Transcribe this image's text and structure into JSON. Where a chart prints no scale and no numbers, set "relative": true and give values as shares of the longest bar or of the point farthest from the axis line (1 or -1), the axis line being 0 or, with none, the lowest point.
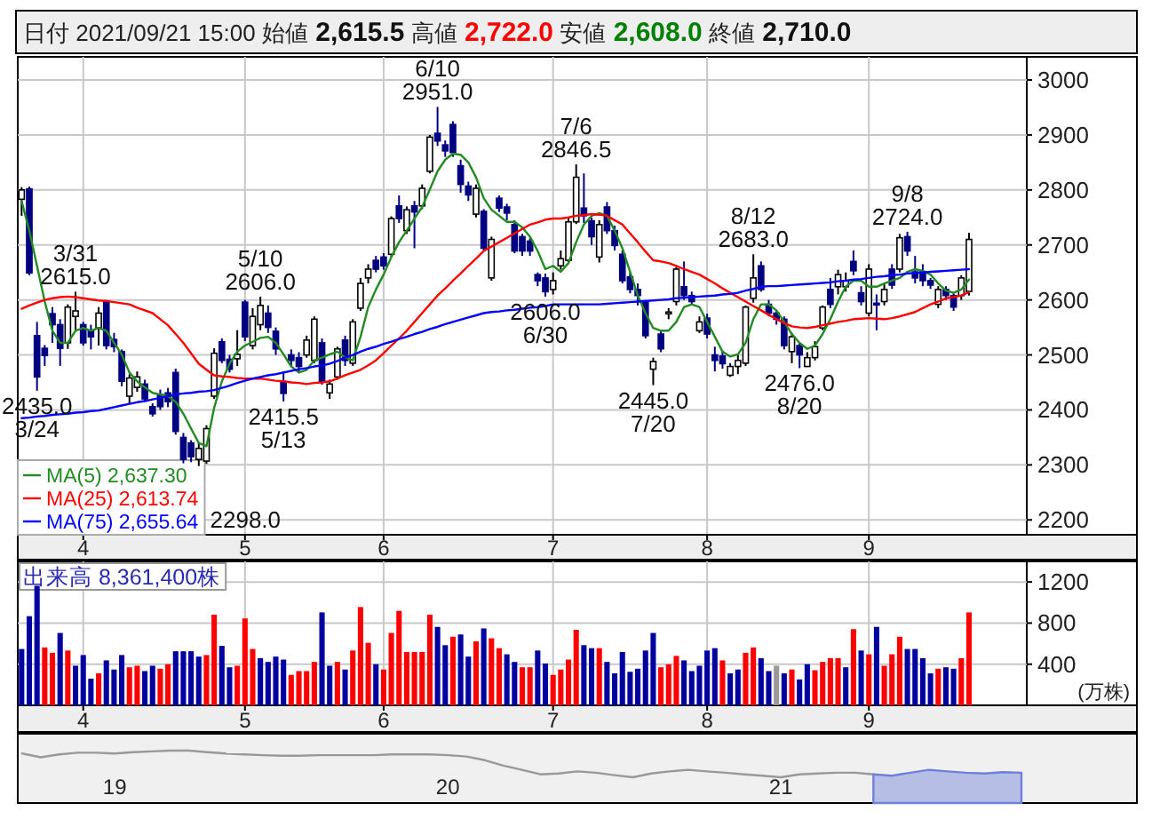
{
  "chart_data": [
    {
      "type": "candlestick",
      "categories": [
        null,
        null,
        null,
        null,
        null,
        null,
        null,
        null,
        "4",
        null,
        null,
        null,
        null,
        null,
        null,
        null,
        null,
        null,
        null,
        null,
        null,
        null,
        null,
        null,
        null,
        null,
        null,
        null,
        null,
        "5",
        null,
        null,
        null,
        null,
        null,
        null,
        null,
        null,
        null,
        null,
        null,
        null,
        null,
        null,
        null,
        null,
        null,
        "6",
        null,
        null,
        null,
        null,
        null,
        null,
        null,
        null,
        null,
        null,
        null,
        null,
        null,
        null,
        null,
        null,
        null,
        null,
        null,
        null,
        null,
        "7",
        null,
        null,
        null,
        null,
        null,
        null,
        null,
        null,
        null,
        null,
        null,
        null,
        null,
        null,
        null,
        null,
        null,
        null,
        null,
        "8",
        null,
        null,
        null,
        null,
        null,
        null,
        null,
        null,
        null,
        null,
        null,
        null,
        null,
        null,
        null,
        null,
        null,
        null,
        null,
        null,
        "9",
        null,
        null,
        null,
        null,
        null,
        null,
        null,
        null,
        null,
        null,
        null,
        null,
        null
      ],
      "ohlc": [
        [
          2783,
          2805,
          2753,
          2800
        ],
        [
          2802,
          2806,
          2645,
          2649
        ],
        [
          2535,
          2560,
          2435,
          2460
        ],
        [
          2512,
          2518,
          2480,
          2499
        ],
        [
          2575,
          2587,
          2522,
          2555
        ],
        [
          2555,
          2565,
          2480,
          2512
        ],
        [
          2522,
          2592,
          2511,
          2587
        ],
        [
          2570,
          2615,
          2545,
          2580
        ],
        [
          2555,
          2560,
          2517,
          2522
        ],
        [
          2545,
          2555,
          2510,
          2533
        ],
        [
          2549,
          2587,
          2517,
          2576
        ],
        [
          2597,
          2600,
          2510,
          2517
        ],
        [
          2528,
          2540,
          2505,
          2515
        ],
        [
          2506,
          2510,
          2443,
          2452
        ],
        [
          2425,
          2465,
          2410,
          2458
        ],
        [
          2441,
          2470,
          2433,
          2460
        ],
        [
          2447,
          2455,
          2415,
          2420
        ],
        [
          2406,
          2412,
          2388,
          2393
        ],
        [
          2428,
          2437,
          2400,
          2406
        ],
        [
          2431,
          2440,
          2405,
          2415
        ],
        [
          2468,
          2475,
          2355,
          2361
        ],
        [
          2350,
          2358,
          2303,
          2310
        ],
        [
          2340,
          2345,
          2305,
          2315
        ],
        [
          2310,
          2340,
          2298,
          2330
        ],
        [
          2307,
          2372,
          2302,
          2366
        ],
        [
          2425,
          2512,
          2420,
          2503
        ],
        [
          2524,
          2530,
          2485,
          2490
        ],
        [
          2492,
          2500,
          2468,
          2474
        ],
        [
          2493,
          2545,
          2480,
          2501
        ],
        [
          2596,
          2600,
          2525,
          2533
        ],
        [
          2517,
          2585,
          2510,
          2570
        ],
        [
          2555,
          2606,
          2545,
          2590
        ],
        [
          2576,
          2590,
          2540,
          2550
        ],
        [
          2543,
          2550,
          2500,
          2511
        ],
        [
          2450,
          2470,
          2415.5,
          2430
        ],
        [
          2500,
          2510,
          2480,
          2490
        ],
        [
          2495,
          2505,
          2470,
          2479
        ],
        [
          2500,
          2535,
          2495,
          2527
        ],
        [
          2490,
          2570,
          2485,
          2565
        ],
        [
          2522,
          2530,
          2446,
          2452
        ],
        [
          2431,
          2455,
          2420,
          2447
        ],
        [
          2460,
          2515,
          2455,
          2511
        ],
        [
          2527,
          2535,
          2480,
          2490
        ],
        [
          2485,
          2565,
          2480,
          2560
        ],
        [
          2585,
          2640,
          2580,
          2630
        ],
        [
          2640,
          2665,
          2630,
          2656
        ],
        [
          2672,
          2680,
          2650,
          2656
        ],
        [
          2678,
          2685,
          2655,
          2662
        ],
        [
          2683,
          2752,
          2678,
          2748
        ],
        [
          2771,
          2790,
          2740,
          2748
        ],
        [
          2726,
          2770,
          2720,
          2764
        ],
        [
          2771,
          2780,
          2694,
          2760
        ],
        [
          2771,
          2810,
          2765,
          2803
        ],
        [
          2834,
          2900,
          2830,
          2896
        ],
        [
          2903,
          2951,
          2880,
          2889
        ],
        [
          2882,
          2890,
          2860,
          2871
        ],
        [
          2919,
          2925,
          2860,
          2868
        ],
        [
          2844,
          2855,
          2795,
          2810
        ],
        [
          2807,
          2815,
          2780,
          2791
        ],
        [
          2756,
          2810,
          2750,
          2803
        ],
        [
          2761,
          2765,
          2690,
          2694
        ],
        [
          2640,
          2715,
          2635,
          2710
        ],
        [
          2785,
          2790,
          2760,
          2767
        ],
        [
          2769,
          2775,
          2745,
          2758
        ],
        [
          2737,
          2745,
          2685,
          2689
        ],
        [
          2715,
          2720,
          2680,
          2689
        ],
        [
          2707,
          2712,
          2680,
          2689
        ],
        [
          2646,
          2650,
          2625,
          2635
        ],
        [
          2640,
          2648,
          2606,
          2615
        ],
        [
          2619,
          2650,
          2610,
          2635
        ],
        [
          2662,
          2690,
          2655,
          2675
        ],
        [
          2672,
          2750,
          2668,
          2742
        ],
        [
          2742,
          2846.5,
          2738,
          2823
        ],
        [
          2767,
          2830,
          2740,
          2753
        ],
        [
          2744,
          2750,
          2700,
          2715
        ],
        [
          2678,
          2745,
          2668,
          2737
        ],
        [
          2769,
          2778,
          2720,
          2726
        ],
        [
          2726,
          2735,
          2690,
          2699
        ],
        [
          2683,
          2690,
          2630,
          2635
        ],
        [
          2642,
          2650,
          2612,
          2619
        ],
        [
          2619,
          2630,
          2590,
          2608
        ],
        [
          2597,
          2600,
          2530,
          2535
        ],
        [
          2474,
          2495,
          2445,
          2488
        ],
        [
          2538,
          2545,
          2505,
          2511
        ],
        [
          2576,
          2585,
          2565,
          2578
        ],
        [
          2597,
          2660,
          2590,
          2656
        ],
        [
          2624,
          2670,
          2600,
          2608
        ],
        [
          2608,
          2615,
          2590,
          2597
        ],
        [
          2544,
          2570,
          2540,
          2560
        ],
        [
          2567,
          2575,
          2530,
          2538
        ],
        [
          2500,
          2515,
          2470,
          2490
        ],
        [
          2498,
          2508,
          2475,
          2484
        ],
        [
          2463,
          2485,
          2460,
          2479
        ],
        [
          2479,
          2500,
          2465,
          2490
        ],
        [
          2485,
          2590,
          2480,
          2587
        ],
        [
          2603,
          2683,
          2595,
          2640
        ],
        [
          2662,
          2670,
          2615,
          2619
        ],
        [
          2592,
          2600,
          2570,
          2576
        ],
        [
          2576,
          2580,
          2555,
          2565
        ],
        [
          2565,
          2570,
          2510,
          2517
        ],
        [
          2506,
          2540,
          2485,
          2533
        ],
        [
          2517,
          2522,
          2476,
          2500
        ],
        [
          2479,
          2505,
          2478,
          2495
        ],
        [
          2495,
          2525,
          2490,
          2515
        ],
        [
          2549,
          2590,
          2545,
          2587
        ],
        [
          2619,
          2640,
          2585,
          2592
        ],
        [
          2624,
          2655,
          2610,
          2646
        ],
        [
          2624,
          2650,
          2615,
          2635
        ],
        [
          2670,
          2690,
          2645,
          2653
        ],
        [
          2613,
          2625,
          2590,
          2597
        ],
        [
          2576,
          2665,
          2570,
          2656
        ],
        [
          2594,
          2610,
          2545,
          2592
        ],
        [
          2597,
          2630,
          2590,
          2619
        ],
        [
          2656,
          2665,
          2620,
          2627
        ],
        [
          2656,
          2720,
          2650,
          2713
        ],
        [
          2715,
          2724,
          2680,
          2689
        ],
        [
          2651,
          2680,
          2630,
          2640
        ],
        [
          2651,
          2665,
          2625,
          2635
        ],
        [
          2635,
          2640,
          2620,
          2627
        ],
        [
          2592,
          2625,
          2585,
          2619
        ],
        [
          2619,
          2625,
          2600,
          2608
        ],
        [
          2608,
          2612,
          2580,
          2587
        ],
        [
          2608,
          2645,
          2600,
          2640
        ],
        [
          2615.5,
          2722,
          2608,
          2710
        ]
      ],
      "series": [
        {
          "name": "MA(5)  2,637.30",
          "type": "line",
          "color": "#228b22",
          "values": [
            2780,
            2726,
            2662,
            2597,
            2544,
            2522,
            2522,
            2544,
            2549,
            2544,
            2549,
            2544,
            2522,
            2501,
            2468,
            2452,
            2441,
            2431,
            2428,
            2425,
            2415,
            2393,
            2366,
            2340,
            2334,
            2404,
            2452,
            2484,
            2506,
            2517,
            2524,
            2531,
            2533,
            2522,
            2501,
            2479,
            2468,
            2473,
            2490,
            2495,
            2501,
            2506,
            2495,
            2490,
            2533,
            2587,
            2619,
            2646,
            2678,
            2705,
            2726,
            2748,
            2769,
            2801,
            2834,
            2855,
            2866,
            2864,
            2850,
            2823,
            2785,
            2764,
            2753,
            2742,
            2742,
            2732,
            2715,
            2689,
            2656,
            2662,
            2651,
            2667,
            2705,
            2737,
            2753,
            2758,
            2753,
            2726,
            2694,
            2651,
            2608,
            2576,
            2549,
            2544,
            2544,
            2560,
            2587,
            2592,
            2587,
            2560,
            2533,
            2506,
            2497,
            2501,
            2522,
            2565,
            2592,
            2592,
            2581,
            2560,
            2538,
            2522,
            2511,
            2517,
            2538,
            2565,
            2597,
            2624,
            2635,
            2635,
            2624,
            2624,
            2630,
            2635,
            2640,
            2651,
            2656,
            2653,
            2646,
            2630,
            2617,
            2613,
            2619,
            2637
          ]
        },
        {
          "name": "MA(25)  2,613.74",
          "type": "line",
          "color": "#ff0000",
          "values": [
            2584,
            2590,
            2595,
            2600,
            2603,
            2605,
            2606,
            2605,
            2603,
            2601,
            2599,
            2598,
            2596,
            2594,
            2592,
            2586,
            2581,
            2576,
            2565,
            2554,
            2538,
            2522,
            2503,
            2484,
            2473,
            2463,
            2461,
            2460,
            2458,
            2457,
            2457,
            2457,
            2455,
            2453,
            2452,
            2450,
            2449,
            2447,
            2449,
            2450,
            2452,
            2457,
            2463,
            2468,
            2473,
            2481,
            2490,
            2503,
            2517,
            2530,
            2544,
            2560,
            2576,
            2592,
            2608,
            2621,
            2635,
            2648,
            2662,
            2675,
            2689,
            2697,
            2705,
            2713,
            2721,
            2729,
            2737,
            2741,
            2746,
            2748,
            2748,
            2750,
            2753,
            2754,
            2756,
            2755,
            2753,
            2745,
            2737,
            2721,
            2705,
            2688,
            2672,
            2670,
            2667,
            2662,
            2656,
            2651,
            2646,
            2638,
            2630,
            2621,
            2613,
            2605,
            2597,
            2589,
            2581,
            2573,
            2565,
            2558,
            2552,
            2550,
            2549,
            2551,
            2554,
            2557,
            2560,
            2562,
            2565,
            2566,
            2567,
            2566,
            2565,
            2567,
            2570,
            2574,
            2578,
            2585,
            2592,
            2597,
            2603,
            2605,
            2608,
            2614
          ]
        },
        {
          "name": "MA(75)  2,655.64",
          "type": "line",
          "color": "#0000ff",
          "values": [
            2385,
            2386,
            2388,
            2389,
            2391,
            2392,
            2393,
            2395,
            2396,
            2398,
            2399,
            2402,
            2405,
            2408,
            2411,
            2414,
            2416,
            2419,
            2422,
            2425,
            2428,
            2430,
            2431,
            2433,
            2434,
            2436,
            2440,
            2444,
            2449,
            2453,
            2457,
            2460,
            2463,
            2465,
            2468,
            2471,
            2474,
            2476,
            2479,
            2481,
            2484,
            2489,
            2495,
            2500,
            2506,
            2511,
            2515,
            2520,
            2524,
            2529,
            2533,
            2538,
            2542,
            2547,
            2551,
            2556,
            2560,
            2564,
            2568,
            2572,
            2576,
            2578,
            2579,
            2581,
            2582,
            2584,
            2586,
            2587,
            2589,
            2592,
            2592,
            2592,
            2592,
            2592,
            2592,
            2592,
            2593,
            2594,
            2595,
            2596,
            2597,
            2598,
            2599,
            2600,
            2601,
            2603,
            2604,
            2605,
            2606,
            2607,
            2608,
            2610,
            2611,
            2613,
            2617,
            2620,
            2624,
            2625,
            2625,
            2626,
            2627,
            2628,
            2629,
            2630,
            2631,
            2632,
            2634,
            2635,
            2637,
            2638,
            2640,
            2642,
            2643,
            2645,
            2646,
            2648,
            2649,
            2650,
            2651,
            2652,
            2653,
            2654,
            2655,
            2656
          ]
        }
      ],
      "ylim": [
        2173,
        3042
      ],
      "yticks": [
        2200,
        2300,
        2400,
        2500,
        2600,
        2700,
        2800,
        2900,
        3000
      ],
      "grid": true,
      "legend": "bottom left",
      "title": "日付 2021/09/21 15:00 始値 2,615.5 高値 2,722.0 安値 2,608.0 終値 2,710.0",
      "annotations": [
        "2298.0",
        {
          "text": "3/31\n2615.0",
          "y": 2615
        },
        {
          "text": "2435.0\n3/24",
          "y": 2435
        },
        {
          "text": "5/10\n2606.0",
          "y": 2606
        },
        {
          "text": "2415.5\n5/13",
          "y": 2415.5
        },
        {
          "text": "6/10\n2951.0",
          "y": 2951
        },
        {
          "text": "2606.0\n6/30",
          "y": 2606
        },
        {
          "text": "7/6\n2846.5",
          "y": 2846.5
        },
        {
          "text": "2445.0\n7/20",
          "y": 2445
        },
        {
          "text": "8/12\n2683.0",
          "y": 2683
        },
        {
          "text": "2476.0\n8/20",
          "y": 2476
        },
        {
          "text": "9/8\n2724.0",
          "y": 2724
        }
      ]
    },
    {
      "type": "bar",
      "title": "出来高  8,361,400株",
      "ylabel": "(万株)",
      "categories": [
        null,
        null,
        null,
        null,
        null,
        null,
        null,
        null,
        "4",
        null,
        null,
        null,
        null,
        null,
        null,
        null,
        null,
        null,
        null,
        null,
        null,
        null,
        null,
        null,
        null,
        null,
        null,
        null,
        null,
        "5",
        null,
        null,
        null,
        null,
        null,
        null,
        null,
        null,
        null,
        null,
        null,
        null,
        null,
        null,
        null,
        null,
        null,
        "6",
        null,
        null,
        null,
        null,
        null,
        null,
        null,
        null,
        null,
        null,
        null,
        null,
        null,
        null,
        null,
        null,
        null,
        null,
        null,
        null,
        null,
        "7",
        null,
        null,
        null,
        null,
        null,
        null,
        null,
        null,
        null,
        null,
        null,
        null,
        null,
        null,
        null,
        null,
        null,
        null,
        null,
        "8",
        null,
        null,
        null,
        null,
        null,
        null,
        null,
        null,
        null,
        null,
        null,
        null,
        null,
        null,
        null,
        null,
        null,
        null,
        null,
        null,
        "9",
        null,
        null,
        null,
        null,
        null,
        null,
        null,
        null,
        null,
        null,
        null,
        null,
        null
      ],
      "values": [
        548,
        867,
        1163,
        563,
        511,
        704,
        533,
        385,
        489,
        259,
        311,
        437,
        348,
        489,
        370,
        385,
        333,
        385,
        356,
        400,
        526,
        526,
        526,
        474,
        489,
        882,
        578,
        370,
        385,
        845,
        548,
        459,
        422,
        474,
        445,
        296,
        333,
        333,
        422,
        904,
        385,
        422,
        348,
        533,
        956,
        608,
        400,
        348,
        704,
        919,
        519,
        519,
        519,
        882,
        763,
        585,
        667,
        689,
        474,
        622,
        748,
        652,
        556,
        496,
        422,
        370,
        370,
        533,
        407,
        296,
        348,
        445,
        734,
        585,
        556,
        556,
        422,
        311,
        519,
        326,
        356,
        533,
        704,
        370,
        400,
        481,
        437,
        333,
        385,
        533,
        556,
        437,
        311,
        348,
        511,
        563,
        459,
        333,
        385,
        311,
        348,
        252,
        400,
        341,
        422,
        459,
        459,
        370,
        741,
        533,
        496,
        763,
        385,
        496,
        667,
        548,
        548,
        459,
        311,
        356,
        370,
        356,
        459,
        904
      ],
      "colors": [
        "#0000a0",
        "#0000a0",
        "#0000a0",
        "#ff0000",
        "#ff0000",
        "#0000a0",
        "#ff0000",
        "#0000a0",
        "#0000a0",
        "#0000a0",
        "#ff0000",
        "#0000a0",
        "#0000a0",
        "#0000a0",
        "#ff0000",
        "#ff0000",
        "#0000a0",
        "#0000a0",
        "#ff0000",
        "#ff0000",
        "#0000a0",
        "#0000a0",
        "#0000a0",
        "#0000a0",
        "#ff0000",
        "#ff0000",
        "#0000a0",
        "#0000a0",
        "#ff0000",
        "#ff0000",
        "#ff0000",
        "#0000a0",
        "#0000a0",
        "#0000a0",
        "#0000a0",
        "#ff0000",
        "#ff0000",
        "#ff0000",
        "#ff0000",
        "#0000a0",
        "#0000a0",
        "#ff0000",
        "#0000a0",
        "#ff0000",
        "#ff0000",
        "#ff0000",
        "#0000a0",
        "#ff0000",
        "#ff0000",
        "#ff0000",
        "#ff0000",
        "#ff0000",
        "#ff0000",
        "#ff0000",
        "#0000a0",
        "#0000a0",
        "#ff0000",
        "#0000a0",
        "#0000a0",
        "#ff0000",
        "#0000a0",
        "#ff0000",
        "#ff0000",
        "#0000a0",
        "#0000a0",
        "#ff0000",
        "#ff0000",
        "#0000a0",
        "#0000a0",
        "#ff0000",
        "#ff0000",
        "#ff0000",
        "#ff0000",
        "#0000a0",
        "#0000a0",
        "#ff0000",
        "#0000a0",
        "#0000a0",
        "#0000a0",
        "#0000a0",
        "#0000a0",
        "#0000a0",
        "#0000a0",
        "#ff0000",
        "#ff0000",
        "#ff0000",
        "#0000a0",
        "#0000a0",
        "#0000a0",
        "#0000a0",
        "#0000a0",
        "#ff0000",
        "#0000a0",
        "#0000a0",
        "#ff0000",
        "#ff0000",
        "#0000a0",
        "#0000a0",
        "#999999",
        "#0000a0",
        "#ff0000",
        "#0000a0",
        "#0000a0",
        "#ff0000",
        "#ff0000",
        "#ff0000",
        "#ff0000",
        "#0000a0",
        "#ff0000",
        "#0000a0",
        "#ff0000",
        "#0000a0",
        "#ff0000",
        "#ff0000",
        "#ff0000",
        "#0000a0",
        "#0000a0",
        "#0000a0",
        "#0000a0",
        "#ff0000",
        "#0000a0",
        "#0000a0",
        "#ff0000",
        "#ff0000"
      ],
      "ylim": [
        0,
        1400
      ],
      "yticks": [
        400,
        800,
        1200
      ],
      "grid": true
    },
    {
      "type": "line",
      "relative": true,
      "categories": [
        null,
        null,
        null,
        null,
        null,
        "19",
        null,
        null,
        null,
        null,
        null,
        null,
        null,
        null,
        null,
        null,
        null,
        null,
        null,
        null,
        null,
        null,
        null,
        "20",
        null,
        null,
        null,
        null,
        null,
        null,
        null,
        null,
        null,
        null,
        null,
        null,
        null,
        null,
        null,
        null,
        null,
        "21",
        null,
        null,
        null,
        null,
        null,
        null,
        null,
        null,
        null,
        null,
        null,
        null,
        null
      ],
      "series": [
        {
          "type": "line",
          "color": "#999999",
          "values": [
            0.89,
            0.75,
            0.86,
            0.92,
            0.92,
            0.89,
            0.94,
            0.97,
            1,
            1,
            0.94,
            0.89,
            0.86,
            0.83,
            0.81,
            0.81,
            0.83,
            0.83,
            0.83,
            0.83,
            0.86,
            0.86,
            0.86,
            0.83,
            0.78,
            0.64,
            0.44,
            0.28,
            0.11,
            0.14,
            0.22,
            0.17,
            0.08,
            0,
            0.14,
            0.22,
            0.28,
            0.22,
            0.17,
            0.11,
            0.06,
            0,
            0.11,
            0.14,
            0.17,
            0.17,
            0.11,
            null,
            null,
            null,
            null,
            null,
            null,
            null,
            null
          ]
        },
        {
          "type": "area",
          "color": "#7080d8",
          "values": [
            null,
            null,
            null,
            null,
            null,
            null,
            null,
            null,
            null,
            null,
            null,
            null,
            null,
            null,
            null,
            null,
            null,
            null,
            null,
            null,
            null,
            null,
            null,
            null,
            null,
            null,
            null,
            null,
            null,
            null,
            null,
            null,
            null,
            null,
            null,
            null,
            null,
            null,
            null,
            null,
            null,
            null,
            null,
            null,
            null,
            null,
            0.11,
            0.06,
            0.17,
            0.28,
            0.22,
            0.17,
            0.14,
            0.19,
            0.17
          ]
        }
      ]
    }
  ]
}
